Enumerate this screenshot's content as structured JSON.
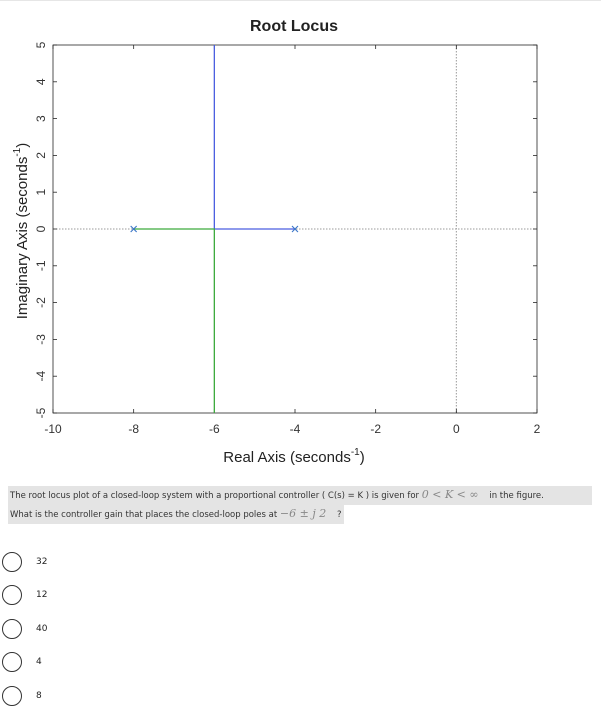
{
  "chart_data": {
    "type": "line",
    "title": "Root Locus",
    "xlabel": "Real Axis (seconds",
    "ylabel": "Imaginary Axis (seconds",
    "axis_unit_exponent": "-1",
    "axis_unit_close": ")",
    "xlim": [
      -10,
      2
    ],
    "ylim": [
      -5,
      5
    ],
    "xticks": [
      -10,
      -8,
      -6,
      -4,
      -2,
      0,
      2
    ],
    "yticks": [
      -5,
      -4,
      -3,
      -2,
      -1,
      0,
      1,
      2,
      3,
      4,
      5
    ],
    "xtick_labels": [
      "-10",
      "-8",
      "-6",
      "-4",
      "-2",
      "0",
      "2"
    ],
    "ytick_labels": [
      "-5",
      "-4",
      "-3",
      "-2",
      "-1",
      "0",
      "1",
      "2",
      "3",
      "4",
      "5"
    ],
    "grid": false,
    "reference_lines": [
      {
        "orientation": "horizontal",
        "value": 0,
        "style": "dotted"
      },
      {
        "orientation": "vertical",
        "value": 0,
        "style": "dotted"
      }
    ],
    "series": [
      {
        "color": "#4a5ee0",
        "points": [
          [
            -4,
            0
          ],
          [
            -6,
            0
          ],
          [
            -6,
            5
          ]
        ]
      },
      {
        "color": "#3caa3c",
        "points": [
          [
            -8,
            0
          ],
          [
            -6,
            0
          ],
          [
            -6,
            -5
          ]
        ]
      }
    ],
    "poles": [
      {
        "x": -8,
        "y": 0,
        "color": "#3a76c8"
      },
      {
        "x": -4,
        "y": 0,
        "color": "#3a76c8"
      }
    ]
  },
  "question": {
    "line1_before": "The root locus plot of a closed-loop system with a proportional controller ( C(s) = K ) is given for",
    "line1_math": "0 < K < ∞",
    "line1_after": "in the figure.",
    "line2_before": "What is the controller gain that places the closed-loop poles at",
    "line2_math": "−6 ± j 2",
    "line2_after": "?"
  },
  "options": [
    "32",
    "12",
    "40",
    "4",
    "8"
  ]
}
